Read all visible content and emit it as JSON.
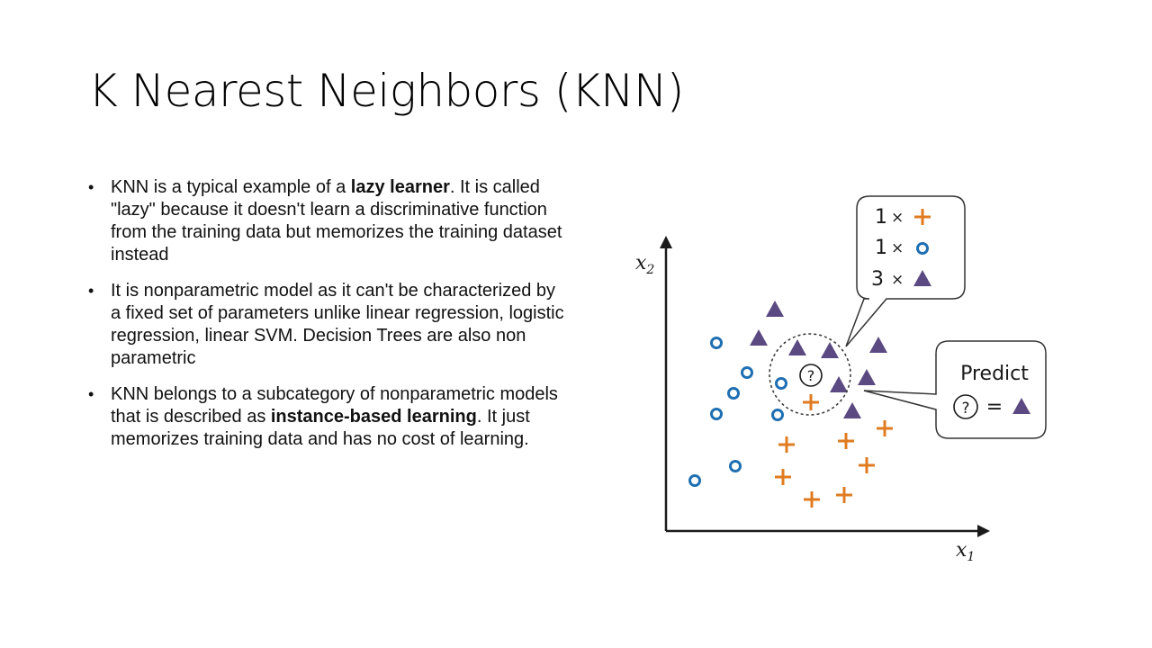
{
  "slide": {
    "title": "K Nearest Neighbors (KNN)",
    "bullets": [
      {
        "before": "KNN is a typical example of a ",
        "bold": "lazy learner",
        "after": ". It is called \"lazy\" because it doesn't learn a discriminative function from the training data but memorizes the training dataset instead"
      },
      {
        "before": "It is nonparametric model as it can't be characterized by a fixed set of parameters unlike linear regression, logistic regression, linear SVM. Decision Trees are also non parametric",
        "bold": "",
        "after": ""
      },
      {
        "before": "KNN belongs to a subcategory of nonparametric models that is described as ",
        "bold": "instance-based learning",
        "after": ". It just memorizes training data and has no cost of learning."
      }
    ]
  },
  "diagram": {
    "axis_x_label": "x",
    "axis_x_sub": "1",
    "axis_y_label": "x",
    "axis_y_sub": "2",
    "query_symbol": "?",
    "counts_box": [
      {
        "count": "1",
        "times": "×",
        "class_icon": "plus-icon"
      },
      {
        "count": "1",
        "times": "×",
        "class_icon": "circle-icon"
      },
      {
        "count": "3",
        "times": "×",
        "class_icon": "triangle-icon"
      }
    ],
    "predict_box": {
      "label": "Predict",
      "query_symbol": "?",
      "equals": "=",
      "result_icon": "triangle-icon"
    },
    "colors": {
      "circle": "#1f6fb2",
      "plus": "#e07b20",
      "triangle": "#5b4a82",
      "axis": "#1a1a1a"
    }
  }
}
